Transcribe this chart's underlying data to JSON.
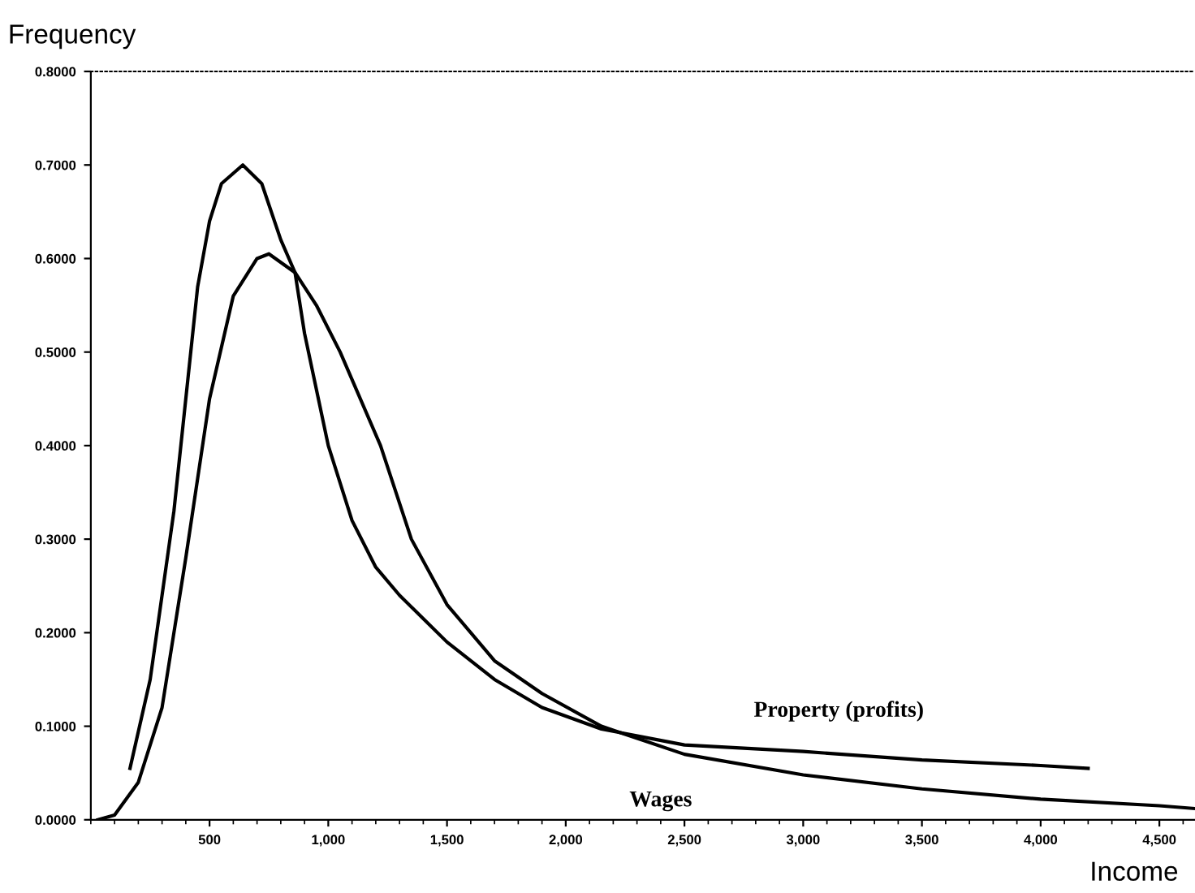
{
  "chart_data": {
    "type": "line",
    "xlabel": "Income",
    "ylabel": "Frequency",
    "xlim": [
      0,
      4650
    ],
    "ylim": [
      0,
      0.8
    ],
    "xticks": [
      {
        "value": 500,
        "label": "500"
      },
      {
        "value": 1000,
        "label": "1,000"
      },
      {
        "value": 1500,
        "label": "1,500"
      },
      {
        "value": 2000,
        "label": "2,000"
      },
      {
        "value": 2500,
        "label": "2,500"
      },
      {
        "value": 3000,
        "label": "3,000"
      },
      {
        "value": 3500,
        "label": "3,500"
      },
      {
        "value": 4000,
        "label": "4,000"
      },
      {
        "value": 4500,
        "label": "4,500"
      }
    ],
    "yticks": [
      {
        "value": 0,
        "label": "0.0000"
      },
      {
        "value": 0.1,
        "label": "0.1000"
      },
      {
        "value": 0.2,
        "label": "0.2000"
      },
      {
        "value": 0.3,
        "label": "0.3000"
      },
      {
        "value": 0.4,
        "label": "0.4000"
      },
      {
        "value": 0.5,
        "label": "0.5000"
      },
      {
        "value": 0.6,
        "label": "0.6000"
      },
      {
        "value": 0.7,
        "label": "0.7000"
      },
      {
        "value": 0.8,
        "label": "0.8000"
      }
    ],
    "grid": false,
    "legend": false,
    "marker": "none",
    "line_style": "solid",
    "series": [
      {
        "name": "Property (profits)",
        "color": "#000000",
        "x": [
          165,
          250,
          350,
          400,
          450,
          500,
          550,
          640,
          720,
          800,
          860,
          900,
          1000,
          1100,
          1200,
          1300,
          1500,
          1700,
          1900,
          2150,
          2500,
          3000,
          3500,
          4000,
          4200
        ],
        "values": [
          0.055,
          0.15,
          0.33,
          0.45,
          0.57,
          0.64,
          0.68,
          0.7,
          0.68,
          0.62,
          0.585,
          0.52,
          0.4,
          0.32,
          0.27,
          0.24,
          0.19,
          0.15,
          0.12,
          0.097,
          0.08,
          0.073,
          0.064,
          0.058,
          0.055
        ]
      },
      {
        "name": "Wages",
        "color": "#000000",
        "x": [
          30,
          100,
          200,
          300,
          400,
          500,
          600,
          700,
          750,
          860,
          950,
          1050,
          1220,
          1350,
          1500,
          1700,
          1900,
          2150,
          2500,
          3000,
          3500,
          4000,
          4500,
          4650
        ],
        "values": [
          0.0,
          0.005,
          0.04,
          0.12,
          0.28,
          0.45,
          0.56,
          0.6,
          0.605,
          0.585,
          0.55,
          0.5,
          0.4,
          0.3,
          0.23,
          0.17,
          0.135,
          0.1,
          0.07,
          0.048,
          0.033,
          0.022,
          0.015,
          0.012
        ]
      }
    ]
  }
}
